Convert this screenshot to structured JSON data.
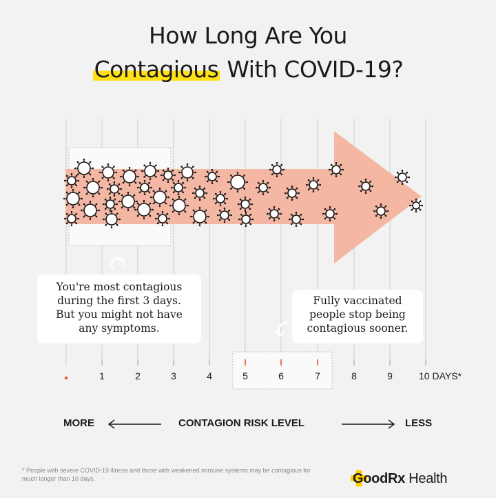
{
  "title": {
    "line1": "How Long Are You",
    "highlight": "Contagious",
    "line2_rest": " With COVID-19?"
  },
  "callouts": {
    "most_contagious": [
      "You're most contagious",
      "during the first 3 days.",
      "But you might not have",
      "any symptoms."
    ],
    "vaccinated": [
      "Fully vaccinated",
      "people stop being",
      "contagious sooner."
    ]
  },
  "axis": {
    "ticks": [
      "1",
      "2",
      "3",
      "4",
      "5",
      "6",
      "7",
      "8",
      "9"
    ],
    "end_label": "10 DAYS*"
  },
  "risk_scale": {
    "left": "MORE",
    "center": "CONTAGION RISK LEVEL",
    "right": "LESS"
  },
  "footnote": "* People with severe COVID-19 illness and those with weakened immune systems may be contagious for much longer than 10 days.",
  "brand": {
    "name_bold": "GoodRx",
    "name_light": " Health"
  },
  "colors": {
    "background": "#f2f2f2",
    "arrow": "#f4b7a4",
    "highlight": "#ffe017",
    "accent_tick": "#e2562b",
    "brand_cross": "#ffd100"
  }
}
